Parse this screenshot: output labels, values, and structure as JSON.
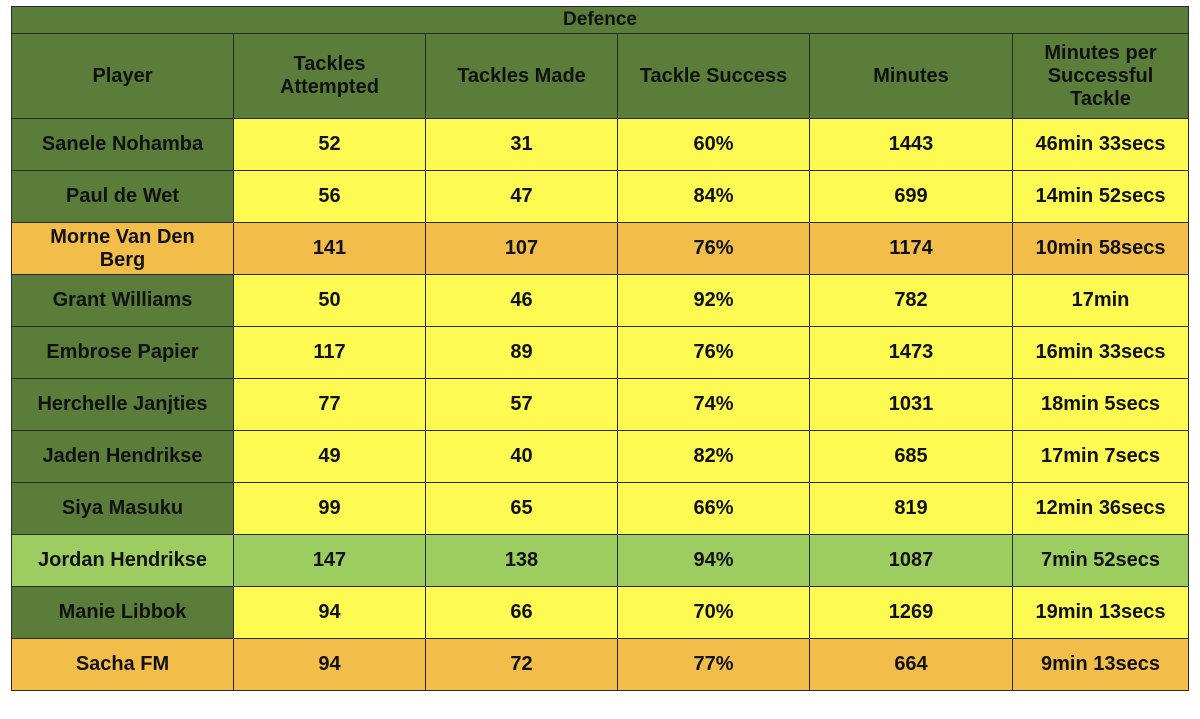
{
  "title": "Defence",
  "columns": [
    "Player",
    "Tackles Attempted",
    "Tackles Made",
    "Tackle Success",
    "Minutes",
    "Minutes per Successful Tackle"
  ],
  "colors": {
    "header": "#5a7d3a",
    "yellow": "#fdfb51",
    "orange": "#f3bd4a",
    "light_green": "#9dcd60"
  },
  "rows": [
    {
      "player": "Sanele Nohamba",
      "attempted": "52",
      "made": "31",
      "success": "60%",
      "minutes": "1443",
      "per_tackle": "46min 33secs",
      "highlight": "yellow"
    },
    {
      "player": "Paul de Wet",
      "attempted": "56",
      "made": "47",
      "success": "84%",
      "minutes": "699",
      "per_tackle": "14min 52secs",
      "highlight": "yellow"
    },
    {
      "player": "Morne Van Den Berg",
      "attempted": "141",
      "made": "107",
      "success": "76%",
      "minutes": "1174",
      "per_tackle": "10min 58secs",
      "highlight": "orange"
    },
    {
      "player": "Grant Williams",
      "attempted": "50",
      "made": "46",
      "success": "92%",
      "minutes": "782",
      "per_tackle": "17min",
      "highlight": "yellow"
    },
    {
      "player": "Embrose Papier",
      "attempted": "117",
      "made": "89",
      "success": "76%",
      "minutes": "1473",
      "per_tackle": "16min 33secs",
      "highlight": "yellow"
    },
    {
      "player": "Herchelle Janjties",
      "attempted": "77",
      "made": "57",
      "success": "74%",
      "minutes": "1031",
      "per_tackle": "18min 5secs",
      "highlight": "yellow"
    },
    {
      "player": "Jaden Hendrikse",
      "attempted": "49",
      "made": "40",
      "success": "82%",
      "minutes": "685",
      "per_tackle": "17min 7secs",
      "highlight": "yellow"
    },
    {
      "player": "Siya Masuku",
      "attempted": "99",
      "made": "65",
      "success": "66%",
      "minutes": "819",
      "per_tackle": "12min 36secs",
      "highlight": "yellow"
    },
    {
      "player": "Jordan Hendrikse",
      "attempted": "147",
      "made": "138",
      "success": "94%",
      "minutes": "1087",
      "per_tackle": "7min 52secs",
      "highlight": "light_green"
    },
    {
      "player": "Manie Libbok",
      "attempted": "94",
      "made": "66",
      "success": "70%",
      "minutes": "1269",
      "per_tackle": "19min 13secs",
      "highlight": "yellow"
    },
    {
      "player": "Sacha FM",
      "attempted": "94",
      "made": "72",
      "success": "77%",
      "minutes": "664",
      "per_tackle": "9min 13secs",
      "highlight": "orange"
    }
  ]
}
